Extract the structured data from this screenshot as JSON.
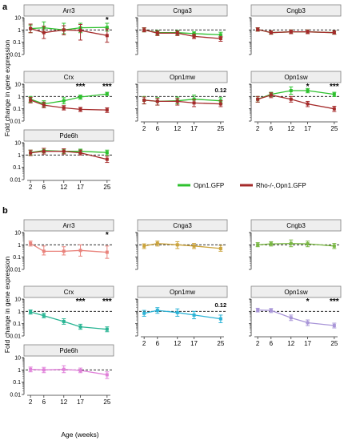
{
  "figure": {
    "x_tick_labels": [
      "2",
      "6",
      "12",
      "17",
      "25"
    ],
    "y_tick_labels": [
      "0.01",
      "0.1",
      "1",
      "10"
    ]
  },
  "colors": {
    "green": "#2ec12e",
    "darkred": "#a52b2b",
    "brown": "#8a6a2a",
    "strip_bg": "#eeeeee",
    "strip_border": "#7f7f7f",
    "ref_line": "#111111",
    "b_panel": {
      "Arr3": "#e9837c",
      "Cnga3": "#cba33a",
      "Cngb3": "#79b743",
      "Crx": "#2ab594",
      "Opn1mw": "#2cb3d6",
      "Opn1sw": "#a996d8",
      "Pde6h": "#e07fd9"
    }
  },
  "chart_data": [
    {
      "type": "line",
      "panel_letter": "a",
      "ylabel": "Fold change in gene expression",
      "xlabel": "Age (weeks)",
      "y_scale": "log",
      "ylim": [
        0.01,
        10
      ],
      "xlim": [
        1,
        26
      ],
      "reference_line_y": 1,
      "legend": {
        "placement": "right of bottom-left facet",
        "entries": [
          {
            "label": "Opn1.GFP",
            "color": "#2ec12e"
          },
          {
            "label": "Rho-/-,Opn1.GFP",
            "color": "#a52b2b"
          }
        ]
      },
      "facets": [
        {
          "name": "Arr3",
          "annotations": [
            {
              "x": 25,
              "text": "*"
            }
          ],
          "series": [
            {
              "x": [
                2,
                6,
                12,
                17,
                25
              ],
              "values": [
                1.3,
                1.5,
                1.0,
                1.5,
                1.6
              ],
              "lo": [
                0.6,
                0.6,
                0.5,
                0.6,
                0.8
              ],
              "hi": [
                2.5,
                4.5,
                3.5,
                3.5,
                3.5
              ],
              "color": "#2ec12e"
            },
            {
              "x": [
                2,
                6,
                12,
                17,
                25
              ],
              "values": [
                1.3,
                0.6,
                1.0,
                0.9,
                0.35
              ],
              "lo": [
                0.6,
                0.2,
                0.4,
                0.15,
                0.1
              ],
              "hi": [
                3.0,
                2.0,
                2.2,
                2.8,
                1.2
              ],
              "color": "#a52b2b"
            }
          ]
        },
        {
          "name": "Cnga3",
          "annotations": [],
          "series": [
            {
              "x": [
                2,
                6,
                12,
                17,
                25
              ],
              "values": [
                1.0,
                0.6,
                0.6,
                0.5,
                0.4
              ],
              "lo": [
                0.7,
                0.4,
                0.4,
                0.35,
                0.25
              ],
              "hi": [
                1.5,
                0.9,
                0.9,
                0.7,
                0.65
              ],
              "color": "#2ec12e"
            },
            {
              "x": [
                2,
                6,
                12,
                17,
                25
              ],
              "values": [
                1.0,
                0.55,
                0.55,
                0.3,
                0.2
              ],
              "lo": [
                0.7,
                0.35,
                0.35,
                0.2,
                0.12
              ],
              "hi": [
                1.5,
                0.8,
                0.8,
                0.45,
                0.3
              ],
              "color": "#a52b2b"
            }
          ]
        },
        {
          "name": "Cngb3",
          "annotations": [],
          "series": [
            {
              "x": [
                2,
                6,
                12,
                17,
                25
              ],
              "values": [
                1.1,
                0.6,
                0.7,
                0.7,
                0.6
              ],
              "lo": [
                0.8,
                0.45,
                0.5,
                0.5,
                0.45
              ],
              "hi": [
                1.5,
                0.85,
                1.0,
                1.0,
                0.85
              ],
              "color": "#2ec12e"
            },
            {
              "x": [
                2,
                6,
                12,
                17,
                25
              ],
              "values": [
                1.1,
                0.6,
                0.7,
                0.7,
                0.6
              ],
              "lo": [
                0.8,
                0.45,
                0.5,
                0.5,
                0.45
              ],
              "hi": [
                1.5,
                0.85,
                1.0,
                1.0,
                0.85
              ],
              "color": "#a52b2b"
            }
          ]
        },
        {
          "name": "Crx",
          "annotations": [
            {
              "x": 17,
              "text": "***"
            },
            {
              "x": 25,
              "text": "***"
            }
          ],
          "series": [
            {
              "x": [
                2,
                6,
                12,
                17,
                25
              ],
              "values": [
                0.6,
                0.25,
                0.45,
                0.9,
                1.6
              ],
              "lo": [
                0.35,
                0.15,
                0.25,
                0.6,
                1.2
              ],
              "hi": [
                1.0,
                0.45,
                0.8,
                1.3,
                2.2
              ],
              "color": "#2ec12e"
            },
            {
              "x": [
                2,
                6,
                12,
                17,
                25
              ],
              "values": [
                0.5,
                0.2,
                0.12,
                0.09,
                0.08
              ],
              "lo": [
                0.3,
                0.12,
                0.08,
                0.06,
                0.05
              ],
              "hi": [
                0.85,
                0.35,
                0.18,
                0.13,
                0.12
              ],
              "color": "#a52b2b"
            }
          ]
        },
        {
          "name": "Opn1mw",
          "annotations": [
            {
              "x": 25,
              "text": "0.12"
            }
          ],
          "series": [
            {
              "x": [
                2,
                6,
                12,
                17,
                25
              ],
              "values": [
                0.5,
                0.4,
                0.45,
                0.6,
                0.45
              ],
              "lo": [
                0.25,
                0.2,
                0.25,
                0.3,
                0.25
              ],
              "hi": [
                1.0,
                0.8,
                0.9,
                1.3,
                0.8
              ],
              "color": "#2ec12e"
            },
            {
              "x": [
                2,
                6,
                12,
                17,
                25
              ],
              "values": [
                0.5,
                0.4,
                0.4,
                0.3,
                0.25
              ],
              "lo": [
                0.25,
                0.2,
                0.2,
                0.15,
                0.15
              ],
              "hi": [
                0.9,
                0.7,
                0.7,
                0.55,
                0.45
              ],
              "color": "#a52b2b"
            }
          ]
        },
        {
          "name": "Opn1sw",
          "annotations": [
            {
              "x": 17,
              "text": "*"
            },
            {
              "x": 25,
              "text": "***"
            }
          ],
          "series": [
            {
              "x": [
                2,
                6,
                12,
                17,
                25
              ],
              "values": [
                0.6,
                1.5,
                3.0,
                3.0,
                1.5
              ],
              "lo": [
                0.35,
                1.0,
                1.5,
                2.0,
                1.0
              ],
              "hi": [
                1.0,
                2.2,
                6.0,
                4.5,
                2.2
              ],
              "color": "#2ec12e"
            },
            {
              "x": [
                2,
                6,
                12,
                17,
                25
              ],
              "values": [
                0.6,
                1.3,
                0.6,
                0.25,
                0.1
              ],
              "lo": [
                0.35,
                0.8,
                0.35,
                0.15,
                0.06
              ],
              "hi": [
                1.0,
                2.0,
                1.0,
                0.4,
                0.16
              ],
              "color": "#a52b2b"
            }
          ]
        },
        {
          "name": "Pde6h",
          "annotations": [],
          "series": [
            {
              "x": [
                2,
                6,
                12,
                17,
                25
              ],
              "values": [
                1.6,
                2.3,
                2.0,
                2.0,
                1.6
              ],
              "lo": [
                1.0,
                1.5,
                1.3,
                1.3,
                1.0
              ],
              "hi": [
                2.5,
                3.5,
                3.0,
                3.0,
                2.5
              ],
              "color": "#2ec12e"
            },
            {
              "x": [
                2,
                6,
                12,
                17,
                25
              ],
              "values": [
                1.5,
                2.0,
                2.0,
                1.5,
                0.45
              ],
              "lo": [
                0.9,
                1.2,
                1.2,
                1.0,
                0.25
              ],
              "hi": [
                2.5,
                3.5,
                3.2,
                2.5,
                0.8
              ],
              "color": "#a52b2b"
            }
          ]
        }
      ]
    },
    {
      "type": "line",
      "panel_letter": "b",
      "ylabel": "Fold change in gene expression",
      "xlabel": "Age (weeks)",
      "y_scale": "log",
      "ylim": [
        0.01,
        10
      ],
      "xlim": [
        1,
        26
      ],
      "reference_line_y": 1,
      "facets": [
        {
          "name": "Arr3",
          "annotations": [
            {
              "x": 25,
              "text": "*"
            }
          ],
          "series": [
            {
              "x": [
                2,
                6,
                12,
                17,
                25
              ],
              "values": [
                1.3,
                0.3,
                0.3,
                0.35,
                0.25
              ],
              "lo": [
                0.8,
                0.15,
                0.15,
                0.12,
                0.08
              ],
              "hi": [
                2.0,
                0.8,
                0.7,
                1.0,
                0.8
              ],
              "color": "#e9837c"
            }
          ]
        },
        {
          "name": "Cnga3",
          "annotations": [],
          "series": [
            {
              "x": [
                2,
                6,
                12,
                17,
                25
              ],
              "values": [
                0.8,
                1.3,
                1.0,
                0.8,
                0.5
              ],
              "lo": [
                0.5,
                0.8,
                0.5,
                0.5,
                0.3
              ],
              "hi": [
                1.2,
                2.0,
                1.8,
                1.3,
                0.9
              ],
              "color": "#cba33a"
            }
          ]
        },
        {
          "name": "Cngb3",
          "annotations": [],
          "series": [
            {
              "x": [
                2,
                6,
                12,
                17,
                25
              ],
              "values": [
                1.0,
                1.2,
                1.3,
                1.2,
                0.8
              ],
              "lo": [
                0.7,
                0.8,
                0.7,
                0.7,
                0.5
              ],
              "hi": [
                1.5,
                1.8,
                2.5,
                2.0,
                1.3
              ],
              "color": "#79b743"
            }
          ]
        },
        {
          "name": "Crx",
          "annotations": [
            {
              "x": 17,
              "text": "***"
            },
            {
              "x": 25,
              "text": "***"
            }
          ],
          "series": [
            {
              "x": [
                2,
                6,
                12,
                17,
                25
              ],
              "values": [
                0.9,
                0.45,
                0.15,
                0.055,
                0.035
              ],
              "lo": [
                0.6,
                0.3,
                0.09,
                0.035,
                0.022
              ],
              "hi": [
                1.3,
                0.7,
                0.25,
                0.09,
                0.055
              ],
              "color": "#2ab594"
            }
          ]
        },
        {
          "name": "Opn1mw",
          "annotations": [
            {
              "x": 25,
              "text": "0.12"
            }
          ],
          "series": [
            {
              "x": [
                2,
                6,
                12,
                17,
                25
              ],
              "values": [
                0.7,
                1.2,
                0.8,
                0.5,
                0.25
              ],
              "lo": [
                0.4,
                0.7,
                0.4,
                0.25,
                0.12
              ],
              "hi": [
                1.2,
                2.0,
                1.6,
                1.0,
                0.5
              ],
              "color": "#2cb3d6"
            }
          ]
        },
        {
          "name": "Opn1sw",
          "annotations": [
            {
              "x": 17,
              "text": "*"
            },
            {
              "x": 25,
              "text": "***"
            }
          ],
          "series": [
            {
              "x": [
                2,
                6,
                12,
                17,
                25
              ],
              "values": [
                1.3,
                1.2,
                0.3,
                0.12,
                0.07
              ],
              "lo": [
                0.9,
                0.8,
                0.18,
                0.07,
                0.045
              ],
              "hi": [
                1.8,
                1.7,
                0.5,
                0.2,
                0.11
              ],
              "color": "#a996d8"
            }
          ]
        },
        {
          "name": "Pde6h",
          "annotations": [],
          "series": [
            {
              "x": [
                2,
                6,
                12,
                17,
                25
              ],
              "values": [
                1.1,
                1.0,
                1.1,
                0.9,
                0.4
              ],
              "lo": [
                0.7,
                0.6,
                0.6,
                0.6,
                0.2
              ],
              "hi": [
                1.7,
                1.6,
                2.2,
                1.4,
                0.7
              ],
              "color": "#e07fd9"
            }
          ]
        }
      ]
    }
  ]
}
